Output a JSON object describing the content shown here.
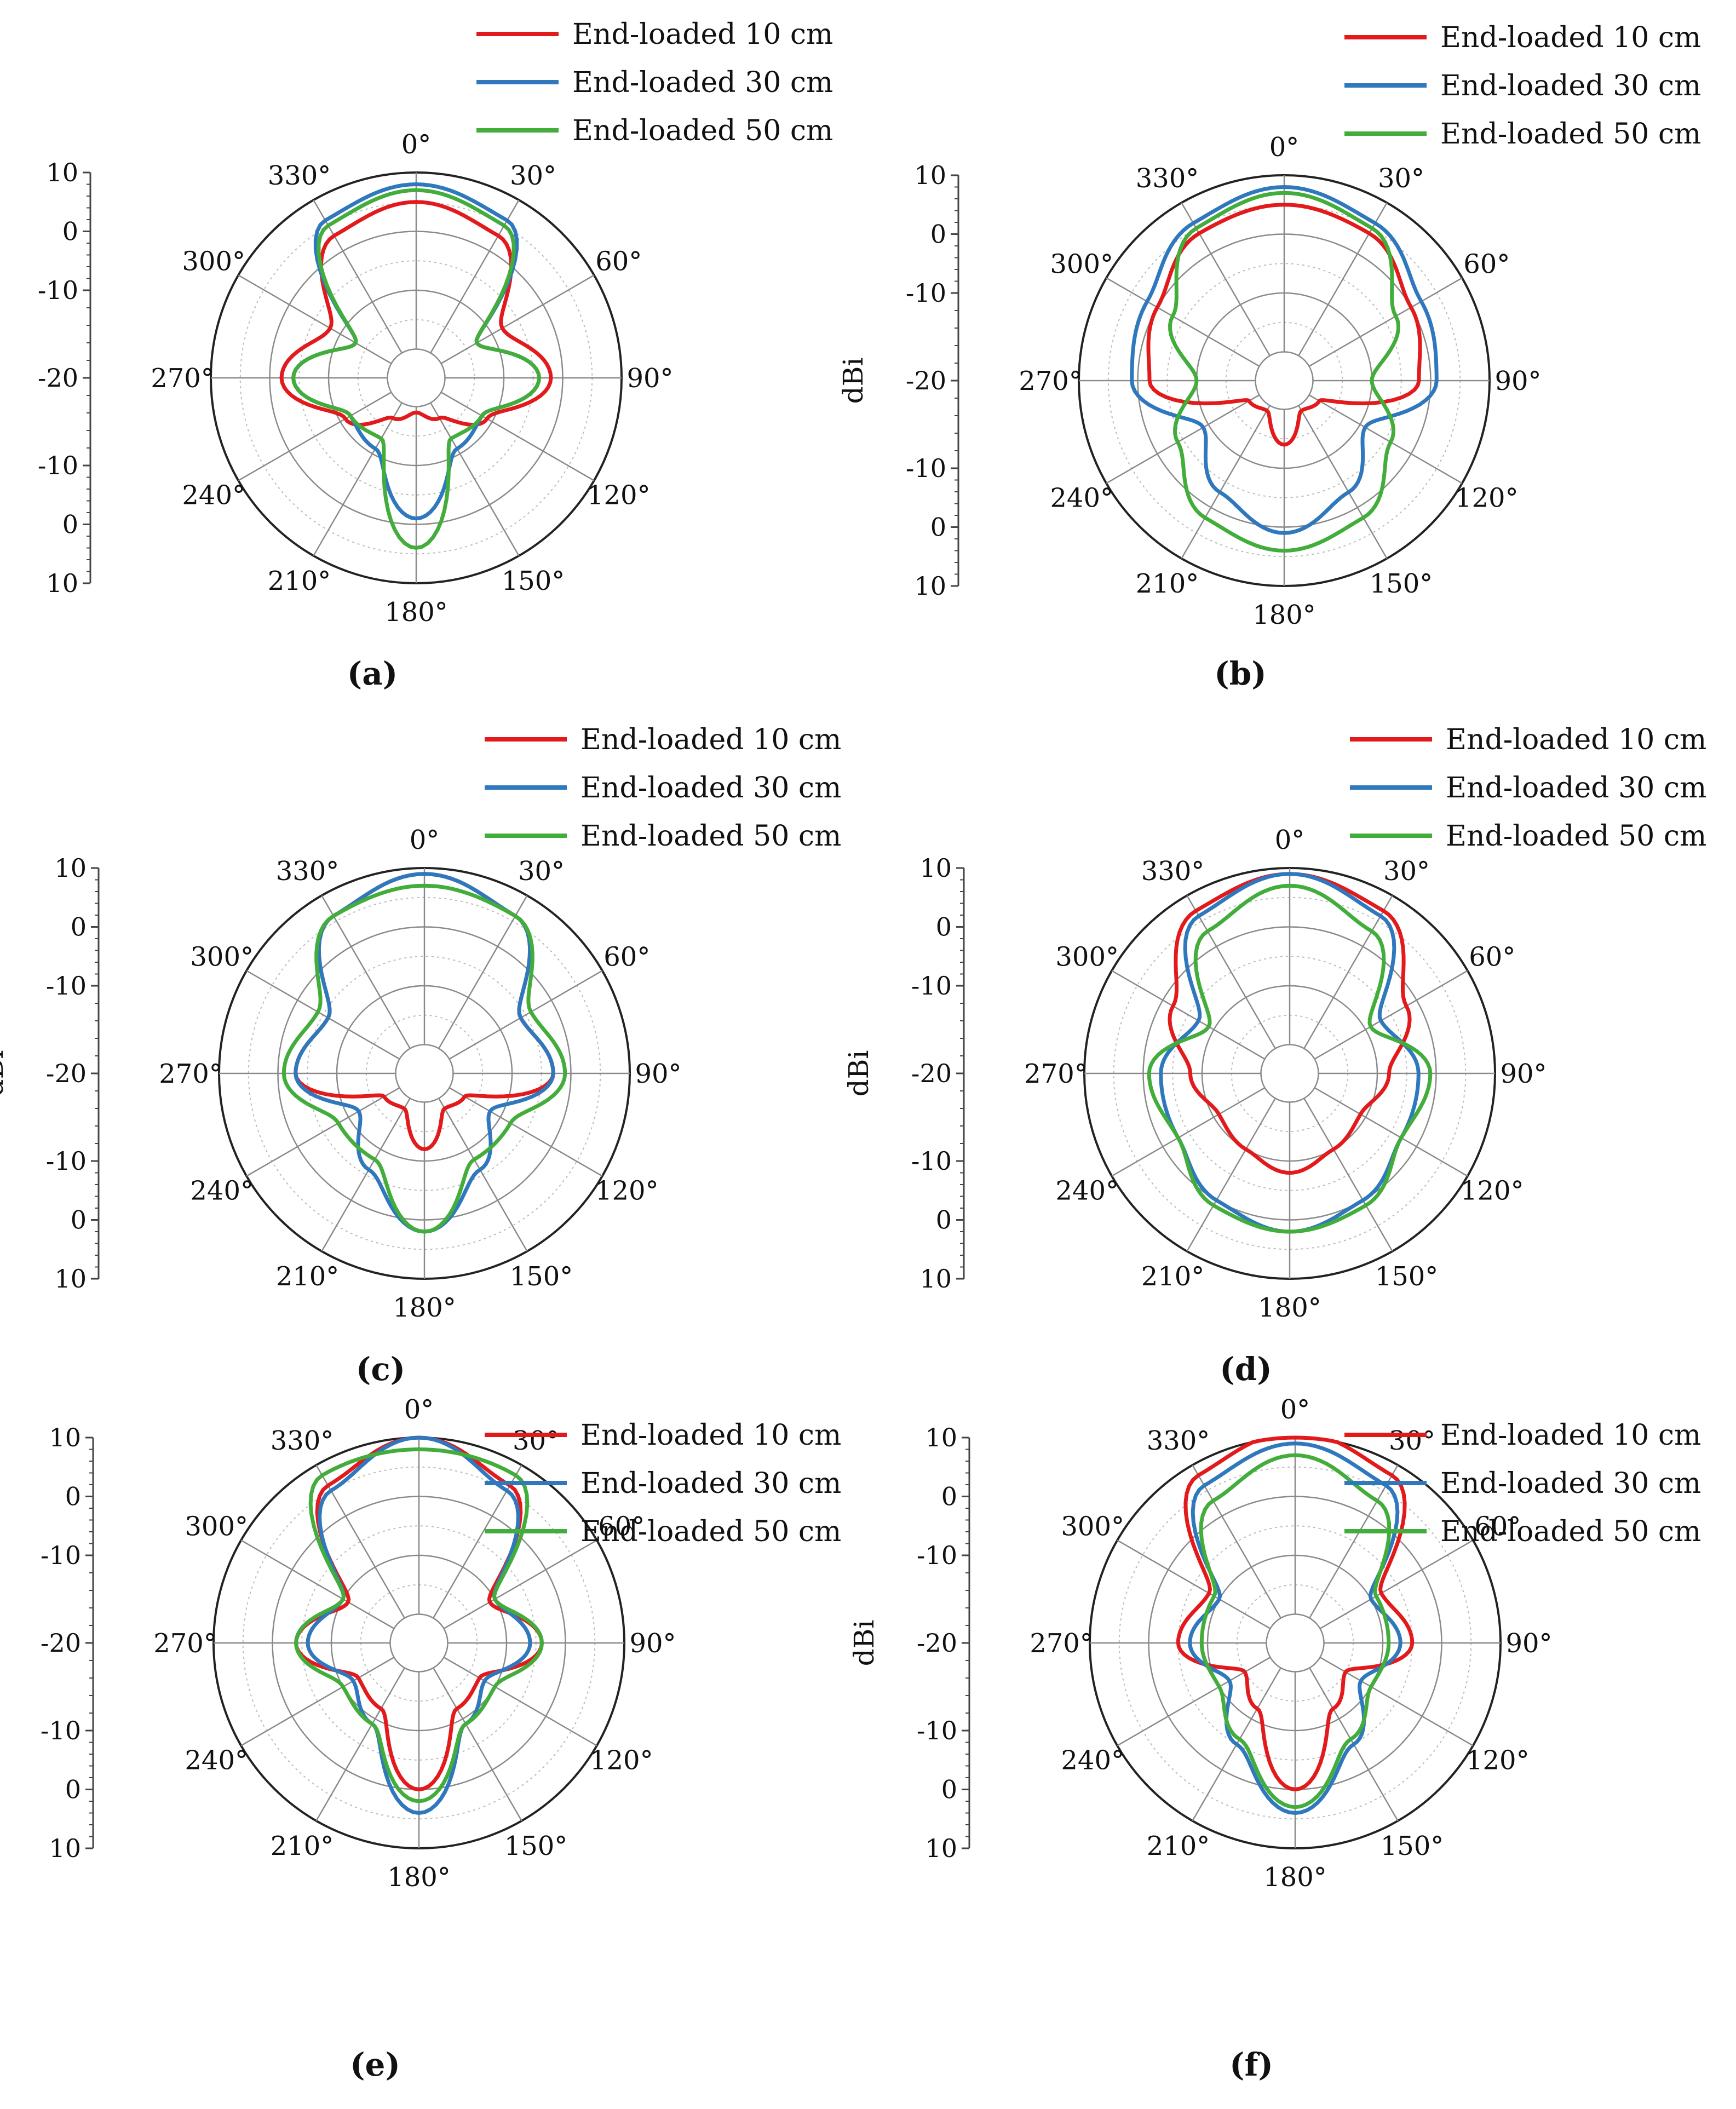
{
  "figure": {
    "common": {
      "ylabel": "dBi",
      "angle_labels": [
        "0°",
        "30°",
        "60°",
        "90°",
        "120°",
        "150°",
        "180°",
        "210°",
        "240°",
        "270°",
        "300°",
        "330°"
      ],
      "radial_ticks": [
        "10",
        "0",
        "-10",
        "-20",
        "-10",
        "0",
        "10"
      ],
      "legend": [
        "End-loaded 10 cm",
        "End-loaded 30 cm",
        "End-loaded 50 cm"
      ],
      "colors": [
        "#e31a1c",
        "#2f78bd",
        "#43ad3c"
      ]
    }
  },
  "chart_data": [
    {
      "type": "polar-line",
      "panel": "a",
      "caption": "(a)",
      "rlim": [
        -20,
        10
      ],
      "radial_ticks": [
        -20,
        -10,
        0,
        10
      ],
      "grid": true,
      "legend_position": "top",
      "theta_deg": [
        0,
        30,
        60,
        90,
        120,
        150,
        180
      ],
      "series": [
        {
          "name": "End-loaded 10 cm",
          "r_dbi": [
            5,
            3,
            -8,
            -2,
            -11,
            -17,
            -19
          ]
        },
        {
          "name": "End-loaded 30 cm",
          "r_dbi": [
            8,
            6,
            -13,
            -4,
            -12,
            -11,
            -1
          ]
        },
        {
          "name": "End-loaded 50 cm",
          "r_dbi": [
            7,
            5,
            -13,
            -4,
            -12,
            -13,
            4
          ]
        }
      ]
    },
    {
      "type": "polar-line",
      "panel": "b",
      "caption": "(b)",
      "rlim": [
        -20,
        10
      ],
      "radial_ticks": [
        -20,
        -10,
        0,
        10
      ],
      "grid": true,
      "legend_position": "top",
      "theta_deg": [
        0,
        30,
        60,
        90,
        120,
        150,
        180
      ],
      "series": [
        {
          "name": "End-loaded 10 cm",
          "r_dbi": [
            5,
            4,
            0,
            -2,
            -18,
            -19,
            -14
          ]
        },
        {
          "name": "End-loaded 30 cm",
          "r_dbi": [
            8,
            6,
            2,
            1,
            -9,
            -3,
            1
          ]
        },
        {
          "name": "End-loaded 50 cm",
          "r_dbi": [
            7,
            5,
            -3,
            -10,
            -4,
            2,
            4
          ]
        }
      ]
    },
    {
      "type": "polar-line",
      "panel": "c",
      "caption": "(c)",
      "rlim": [
        -20,
        10
      ],
      "radial_ticks": [
        -20,
        -10,
        0,
        10
      ],
      "grid": true,
      "legend_position": "top",
      "theta_deg": [
        0,
        30,
        60,
        90,
        120,
        150,
        180
      ],
      "series": [
        {
          "name": "End-loaded 10 cm",
          "r_dbi": [
            9,
            6,
            -6,
            -3,
            -17,
            -18,
            -12
          ]
        },
        {
          "name": "End-loaded 30 cm",
          "r_dbi": [
            9,
            6,
            -6,
            -3,
            -12,
            -6,
            2
          ]
        },
        {
          "name": "End-loaded 50 cm",
          "r_dbi": [
            7,
            6,
            -4,
            -1,
            -8,
            -8,
            2
          ]
        }
      ]
    },
    {
      "type": "polar-line",
      "panel": "d",
      "caption": "(d)",
      "rlim": [
        -20,
        10
      ],
      "radial_ticks": [
        -20,
        -10,
        0,
        10
      ],
      "grid": true,
      "legend_position": "top",
      "theta_deg": [
        0,
        30,
        60,
        90,
        120,
        150,
        180
      ],
      "series": [
        {
          "name": "End-loaded 10 cm",
          "r_dbi": [
            9,
            7,
            -2,
            -8,
            -11,
            -10,
            -8
          ]
        },
        {
          "name": "End-loaded 30 cm",
          "r_dbi": [
            9,
            6,
            -7,
            -3,
            -3,
            0,
            2
          ]
        },
        {
          "name": "End-loaded 50 cm",
          "r_dbi": [
            7,
            3,
            -9,
            -1,
            -3,
            1,
            2
          ]
        }
      ]
    },
    {
      "type": "polar-line",
      "panel": "e",
      "caption": "(e)",
      "rlim": [
        -20,
        10
      ],
      "radial_ticks": [
        -20,
        -10,
        0,
        10
      ],
      "grid": true,
      "legend_position": "top",
      "theta_deg": [
        0,
        30,
        60,
        90,
        120,
        150,
        180
      ],
      "series": [
        {
          "name": "End-loaded 10 cm",
          "r_dbi": [
            10,
            6,
            -11,
            -4,
            -13,
            -12,
            0
          ]
        },
        {
          "name": "End-loaded 30 cm",
          "r_dbi": [
            10,
            5,
            -10,
            -6,
            -12,
            -9,
            4
          ]
        },
        {
          "name": "End-loaded 50 cm",
          "r_dbi": [
            8,
            8,
            -10,
            -4,
            -10,
            -9,
            2
          ]
        }
      ]
    },
    {
      "type": "polar-line",
      "panel": "f",
      "caption": "(f)",
      "rlim": [
        -20,
        10
      ],
      "radial_ticks": [
        -20,
        -10,
        0,
        10
      ],
      "grid": true,
      "legend_position": "top",
      "theta_deg": [
        0,
        30,
        60,
        90,
        120,
        150,
        180
      ],
      "series": [
        {
          "name": "End-loaded 10 cm",
          "r_dbi": [
            11,
            8,
            -8,
            -5,
            -15,
            -12,
            0
          ]
        },
        {
          "name": "End-loaded 30 cm",
          "r_dbi": [
            9,
            6,
            -10,
            -7,
            -12,
            -5,
            4
          ]
        },
        {
          "name": "End-loaded 50 cm",
          "r_dbi": [
            7,
            3,
            -9,
            -9,
            -10,
            -6,
            3
          ]
        }
      ]
    }
  ]
}
